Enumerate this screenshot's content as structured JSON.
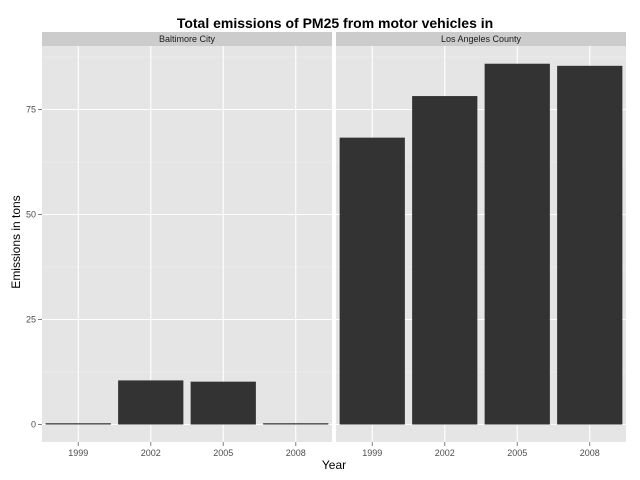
{
  "chart_data": {
    "type": "bar",
    "title": "Total emissions of PM25 from motor vehicles in",
    "xlabel": "Year",
    "ylabel": "Emissions in tons",
    "categories": [
      "1999",
      "2002",
      "2005",
      "2008"
    ],
    "ylim": [
      0,
      88
    ],
    "yticks": [
      0,
      25,
      50,
      75
    ],
    "ytick_labels": [
      "0",
      "25",
      "50",
      "75"
    ],
    "grid": true,
    "panels": [
      {
        "name": "Baltimore City",
        "values": [
          0.3,
          10.5,
          10.2,
          0.3
        ]
      },
      {
        "name": "Los Angeles County",
        "values": [
          68.3,
          78.2,
          85.9,
          85.4
        ]
      }
    ],
    "colors": {
      "bar": "#333333",
      "panel_bg": "#e5e5e5",
      "strip_bg": "#cccccc",
      "grid_major": "#ffffff",
      "grid_minor": "#f2f2f2"
    }
  }
}
